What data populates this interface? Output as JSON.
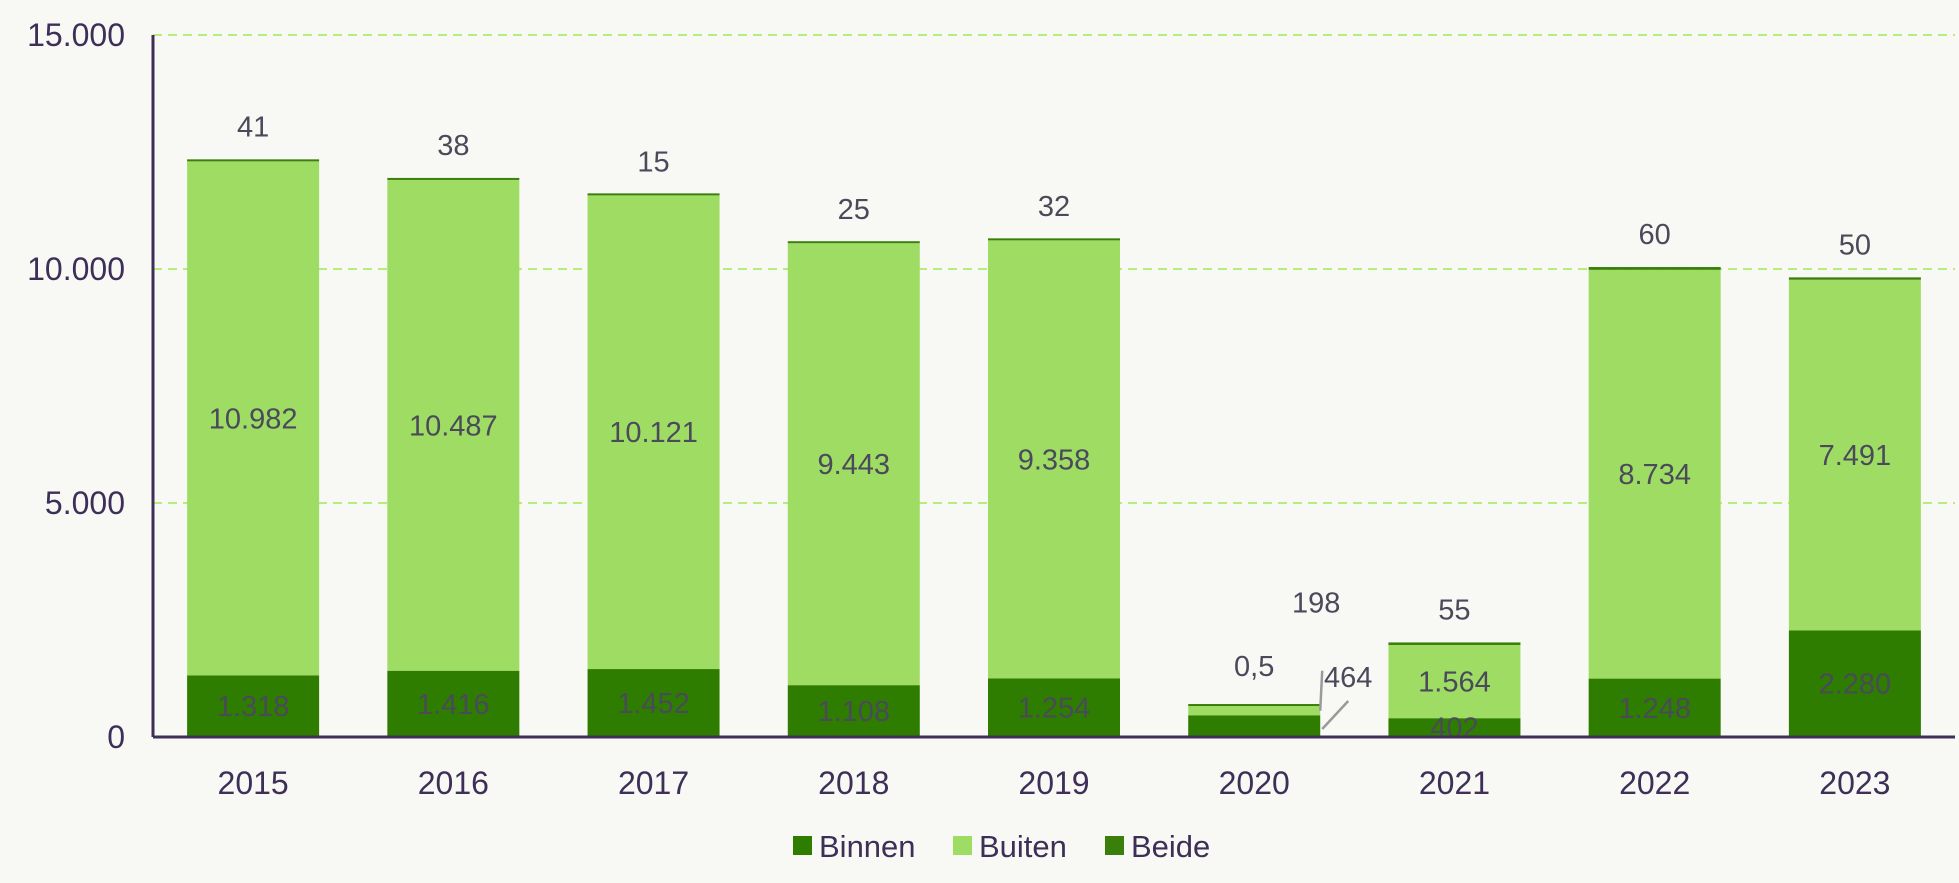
{
  "chart_data": {
    "type": "bar",
    "stacked": true,
    "categories": [
      "2015",
      "2016",
      "2017",
      "2018",
      "2019",
      "2020",
      "2021",
      "2022",
      "2023"
    ],
    "series": [
      {
        "name": "Binnen",
        "color": "#2e7d00",
        "values": [
          1318,
          1416,
          1452,
          1108,
          1254,
          464,
          402,
          1248,
          2280
        ]
      },
      {
        "name": "Buiten",
        "color": "#9fdc64",
        "values": [
          10982,
          10487,
          10121,
          9443,
          9358,
          198,
          1564,
          8734,
          7491
        ]
      },
      {
        "name": "Beide",
        "color": "#3a7f0a",
        "values": [
          41,
          38,
          15,
          25,
          32,
          0.5,
          55,
          60,
          50
        ]
      }
    ],
    "data_labels": {
      "Binnen": [
        "1.318",
        "1.416",
        "1.452",
        "1.108",
        "1.254",
        "464",
        "402",
        "1.248",
        "2.280"
      ],
      "Buiten": [
        "10.982",
        "10.487",
        "10.121",
        "9.443",
        "9.358",
        "198",
        "1.564",
        "8.734",
        "7.491"
      ],
      "Beide": [
        "41",
        "38",
        "15",
        "25",
        "32",
        "0,5",
        "55",
        "60",
        "50"
      ]
    },
    "ylim": [
      0,
      15000
    ],
    "yticks": [
      0,
      5000,
      10000,
      15000
    ],
    "ytick_labels": [
      "0",
      "5.000",
      "10.000",
      "15.000"
    ],
    "grid": true,
    "legend_position": "bottom",
    "title": "",
    "xlabel": "",
    "ylabel": ""
  }
}
